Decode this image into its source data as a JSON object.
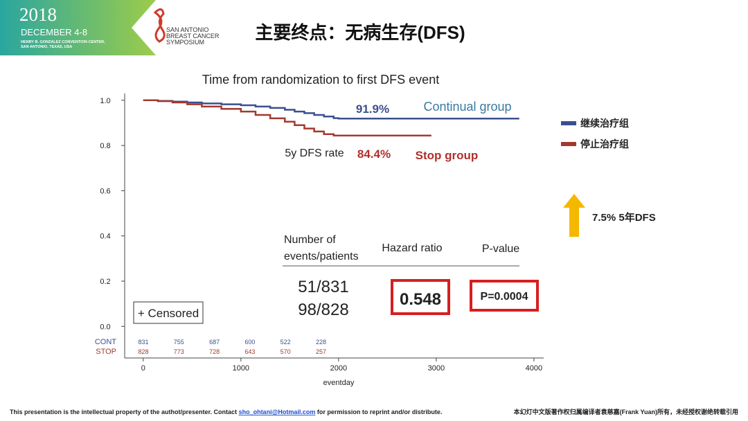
{
  "header": {
    "year": "2018",
    "dates": "DECEMBER 4-8",
    "venue_1": "HENRY B. GONZALEZ CONVENTION CENTER,",
    "venue_2": "SAN ANTONIO, TEXAS, USA",
    "logo_1": "SAN ANTONIO",
    "logo_2": "BREAST CANCER",
    "logo_3": "SYMPOSIUM",
    "title": "主要终点：无病生存(DFS)"
  },
  "chart_data": {
    "type": "line",
    "step": true,
    "title": "Time from randomization to first DFS event",
    "xlabel": "eventday",
    "xlim": [
      -190,
      4100
    ],
    "ylim": [
      -0.14,
      1.03
    ],
    "xticks": [
      0,
      1000,
      2000,
      3000,
      4000
    ],
    "yticks": [
      {
        "value": 0,
        "label": "0.0"
      },
      0.2,
      0.4,
      0.6,
      0.8,
      {
        "value": 1,
        "label": "1.0"
      }
    ],
    "series": [
      {
        "name": "继续治疗组",
        "color": "#3b4f8e",
        "x": [
          0,
          150,
          300,
          450,
          600,
          800,
          1000,
          1150,
          1300,
          1450,
          1550,
          1650,
          1750,
          1850,
          1950,
          2000,
          3850
        ],
        "values": [
          1.0,
          0.997,
          0.994,
          0.99,
          0.986,
          0.982,
          0.978,
          0.972,
          0.966,
          0.958,
          0.95,
          0.943,
          0.935,
          0.928,
          0.921,
          0.919,
          0.919
        ]
      },
      {
        "name": "停止治疗组",
        "color": "#a3392e",
        "x": [
          0,
          150,
          300,
          450,
          600,
          800,
          1000,
          1150,
          1300,
          1450,
          1550,
          1650,
          1750,
          1850,
          1950,
          2950
        ],
        "values": [
          1.0,
          0.996,
          0.99,
          0.982,
          0.972,
          0.962,
          0.95,
          0.935,
          0.92,
          0.905,
          0.89,
          0.875,
          0.862,
          0.85,
          0.844,
          0.844
        ]
      }
    ],
    "annotations": {
      "cont_rate": "91.9%",
      "cont_label": "Continual group",
      "rate_label": "5y DFS rate",
      "stop_rate": "84.4%",
      "stop_label": "Stop group",
      "censored": "+ Censored"
    },
    "at_risk": {
      "cont_label": "CONT",
      "stop_label": "STOP",
      "cont": [
        831,
        755,
        687,
        600,
        522,
        228
      ],
      "stop": [
        828,
        773,
        728,
        643,
        570,
        257
      ]
    },
    "table": {
      "col_1a": "Number of",
      "col_1b": "events/patients",
      "col_2": "Hazard ratio",
      "col_3": "P-value",
      "events_1": "51/831",
      "events_2": "98/828",
      "hazard_ratio": "0.548",
      "p_value": "P=0.0004"
    }
  },
  "callout": "7.5%  5年DFS",
  "footer": {
    "left_1": "This presentation is the intellectual property of the authot/presenter. Contact ",
    "email": "sho_ohtani@Hotmail.com",
    "left_2": " for permission to reprint and/or distribute.",
    "right": "本幻灯中文版著作权归属编译者袁慈嘉(Frank  Yuan)所有，未经授权谢绝转载引用"
  }
}
